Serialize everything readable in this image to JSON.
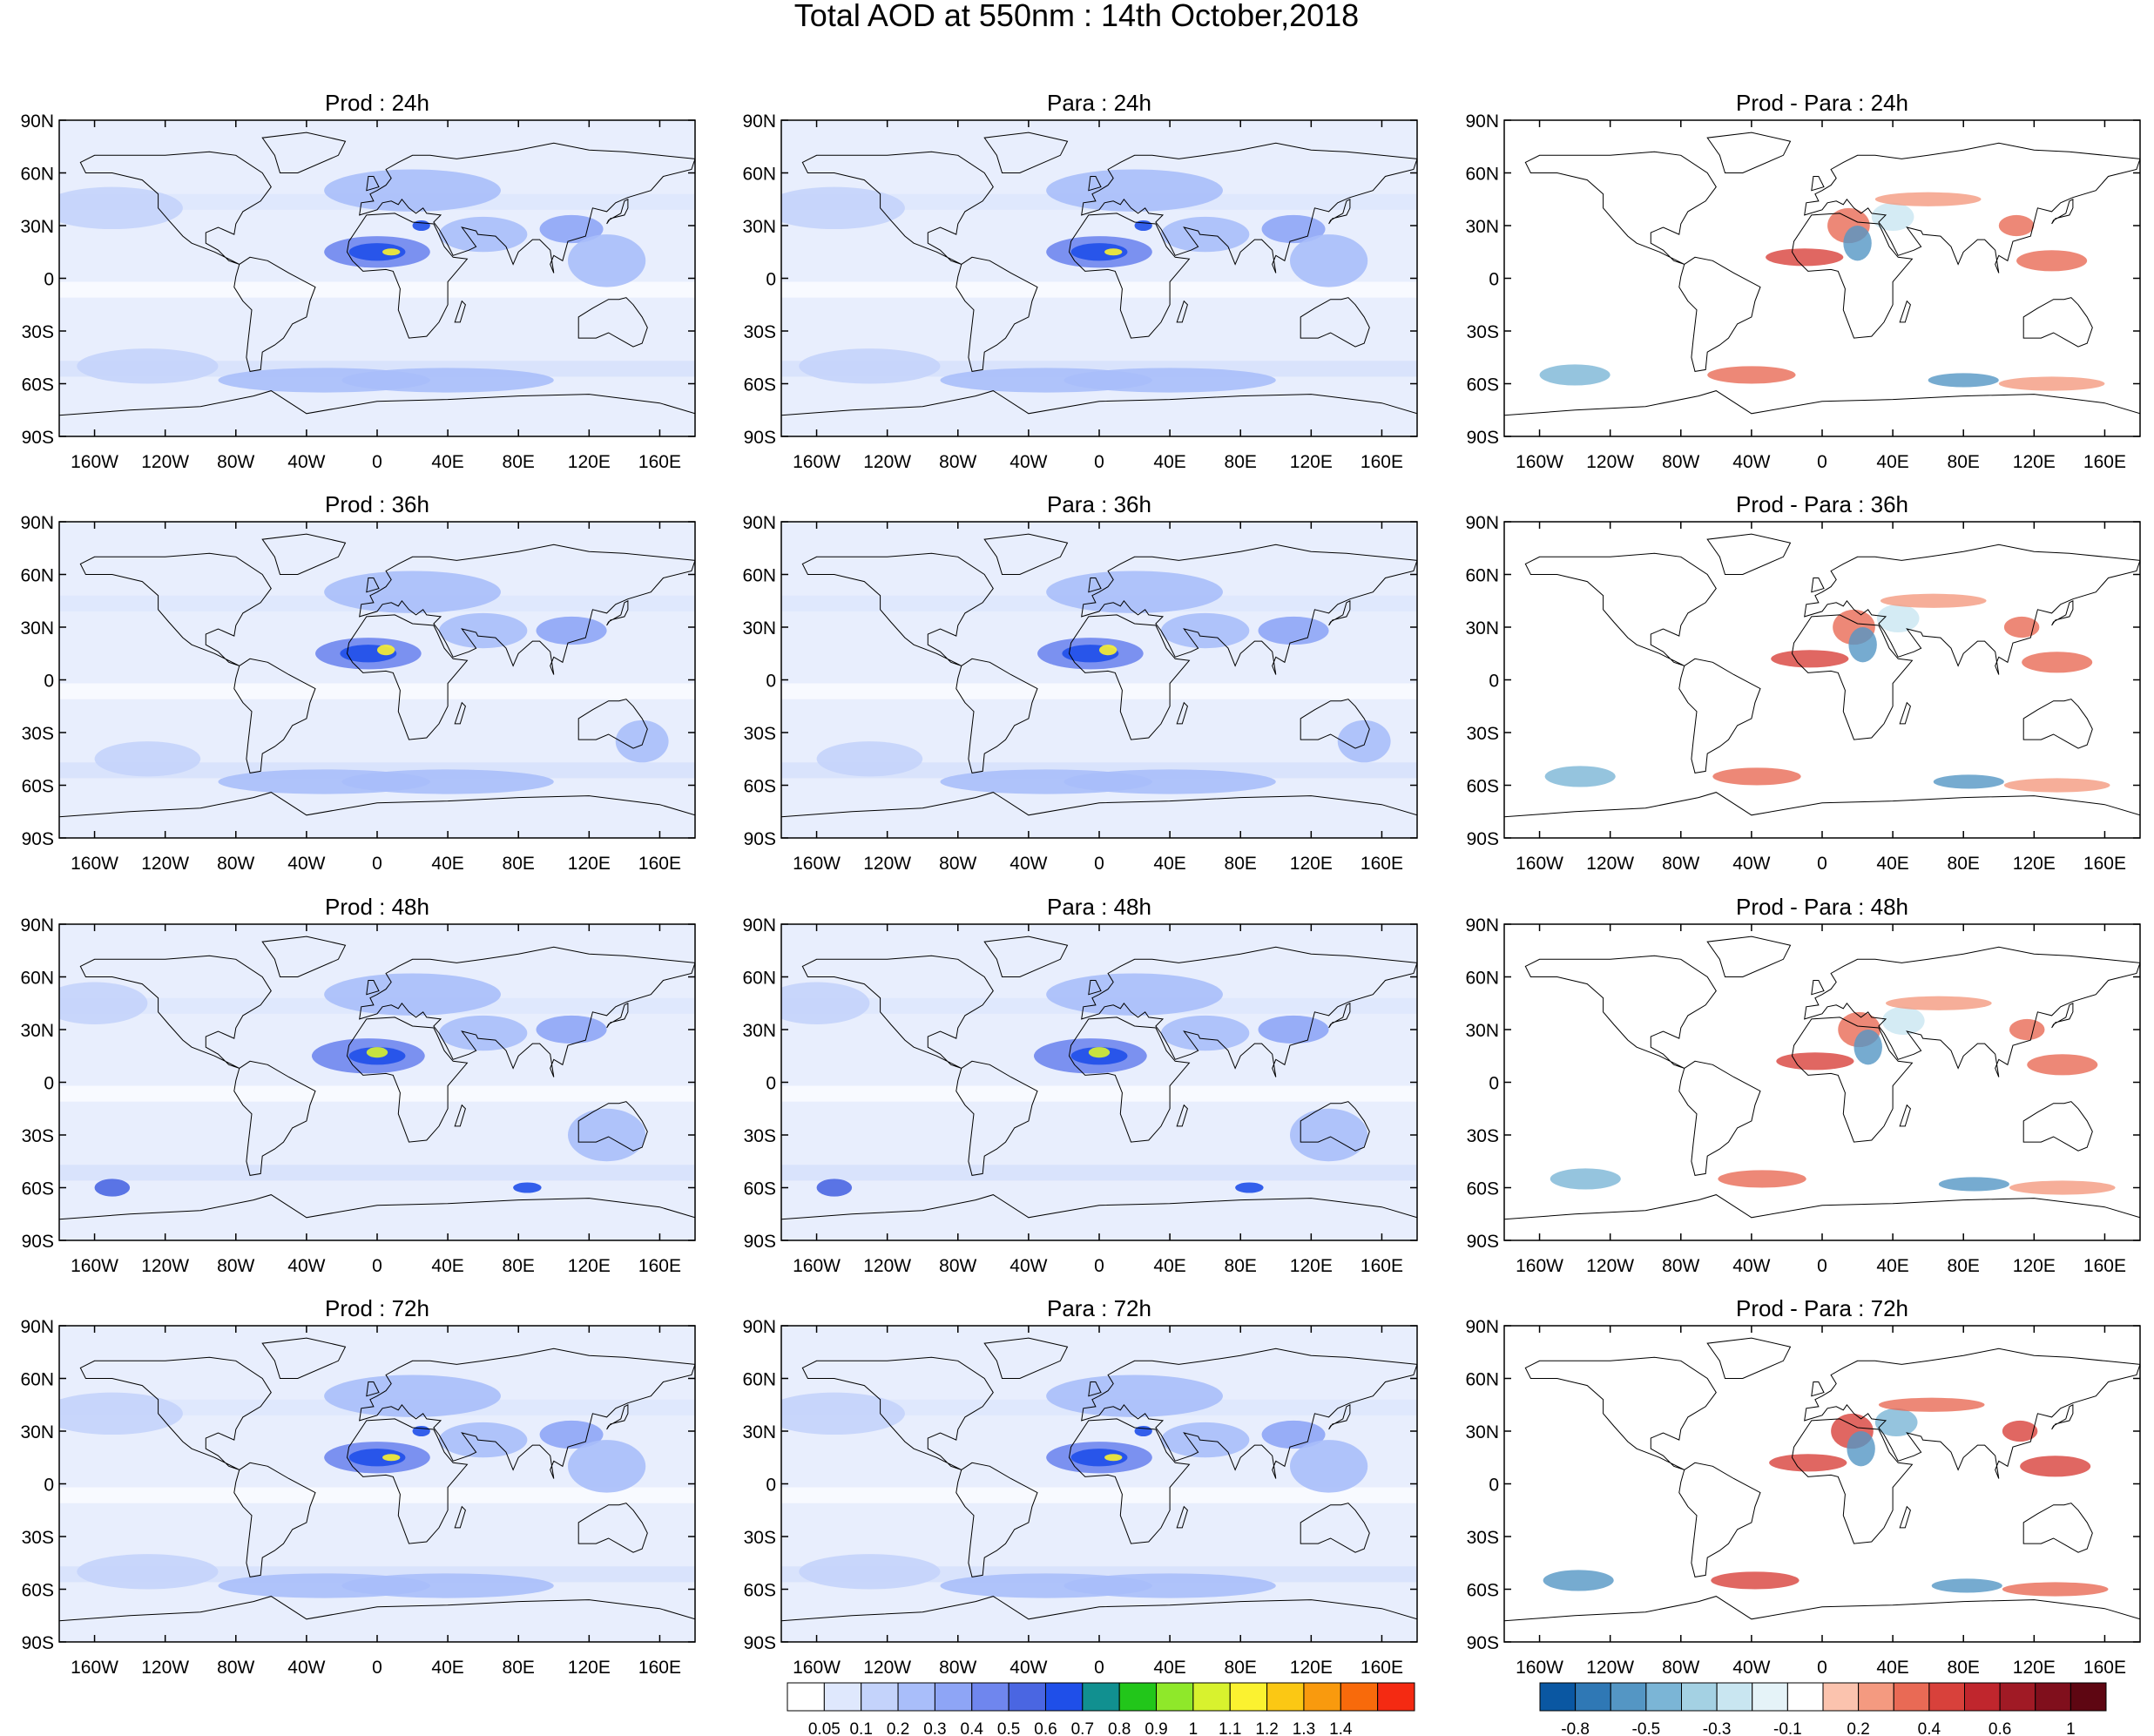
{
  "title": "Total AOD at 550nm : 14th October,2018",
  "column_prefixes": [
    "Prod",
    "Para",
    "Prod - Para"
  ],
  "panels": [
    [
      "Prod : 24h",
      "Para : 24h",
      "Prod - Para : 24h"
    ],
    [
      "Prod : 36h",
      "Para : 36h",
      "Prod - Para : 36h"
    ],
    [
      "Prod : 48h",
      "Para : 48h",
      "Prod - Para : 48h"
    ],
    [
      "Prod : 72h",
      "Para : 72h",
      "Prod - Para : 72h"
    ]
  ],
  "lat_ticks": [
    "90N",
    "60N",
    "30N",
    "0",
    "30S",
    "60S",
    "90S"
  ],
  "lon_ticks": [
    "160W",
    "120W",
    "80W",
    "40W",
    "0",
    "40E",
    "80E",
    "120E",
    "160E"
  ],
  "aod_colorbar": {
    "labels": [
      "0.05",
      "0.1",
      "0.2",
      "0.3",
      "0.4",
      "0.5",
      "0.6",
      "0.7",
      "0.8",
      "0.9",
      "1",
      "1.1",
      "1.2",
      "1.3",
      "1.4"
    ],
    "colors": [
      "#ffffff",
      "#dfe8fd",
      "#c4d3fb",
      "#a9befa",
      "#8ea5f6",
      "#6f86ee",
      "#4a66e2",
      "#1f4fe9",
      "#119090",
      "#22c61a",
      "#8fe82a",
      "#d8f22e",
      "#fbf230",
      "#fbc814",
      "#f99a0e",
      "#f86a0b",
      "#f42a12"
    ]
  },
  "diff_colorbar": {
    "labels": [
      "-0.8",
      "-0.5",
      "-0.3",
      "-0.1",
      "0.2",
      "0.4",
      "0.6",
      "1"
    ],
    "colors": [
      "#0a57a2",
      "#2f78b5",
      "#5496c4",
      "#7bb5d6",
      "#a4d1e3",
      "#c9e6f1",
      "#e5f3f8",
      "#ffffff",
      "#fbc3ae",
      "#f49a80",
      "#e96a55",
      "#d8413b",
      "#c0262d",
      "#a01a25",
      "#800f1c",
      "#5e0612"
    ]
  }
}
